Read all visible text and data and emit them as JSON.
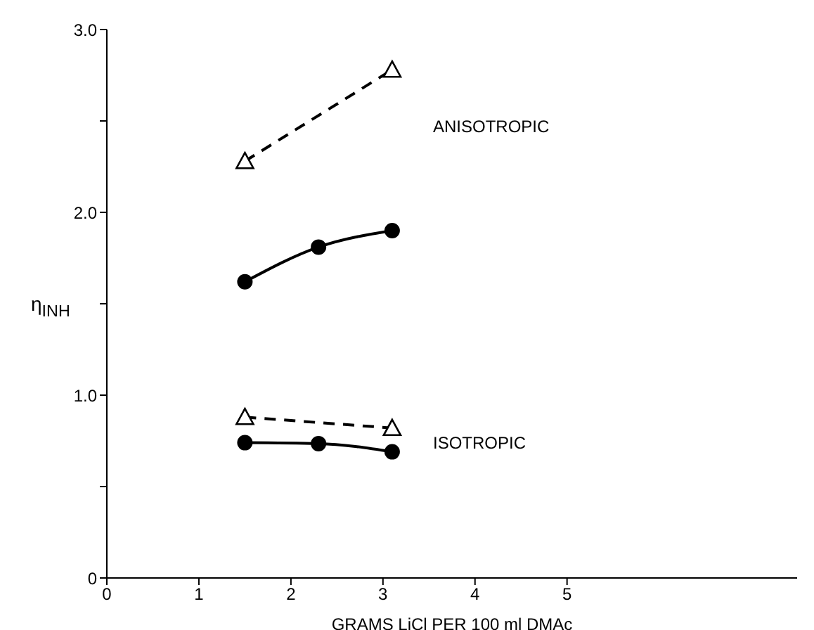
{
  "chart_data": {
    "type": "line",
    "xlabel": "GRAMS LiCl PER 100 ml DMAc",
    "ylabel": "η$_{INH}$",
    "xlim": [
      0,
      7.5
    ],
    "xticks": [
      0,
      1,
      2,
      3,
      4,
      5
    ],
    "ylim": [
      0,
      3.0
    ],
    "yticks": [
      {
        "value": 0,
        "label": "0"
      },
      {
        "value": 0.5,
        "label": null
      },
      {
        "value": 1.0,
        "label": "1.0"
      },
      {
        "value": 1.5,
        "label": null
      },
      {
        "value": 2.0,
        "label": "2.0"
      },
      {
        "value": 2.5,
        "label": null
      },
      {
        "value": 3.0,
        "label": "3.0"
      }
    ],
    "series": [
      {
        "color": "#000000",
        "marker": "triangle",
        "line_style": "dashed",
        "x": [
          1.5,
          3.1
        ],
        "values": [
          2.28,
          2.78
        ]
      },
      {
        "color": "#000000",
        "marker": "circle",
        "line_style": "solid",
        "x": [
          1.5,
          2.3,
          3.1
        ],
        "values": [
          1.62,
          1.81,
          1.9
        ]
      },
      {
        "color": "#000000",
        "marker": "triangle",
        "line_style": "dashed",
        "x": [
          1.5,
          3.1
        ],
        "values": [
          0.88,
          0.82
        ]
      },
      {
        "color": "#000000",
        "marker": "circle",
        "line_style": "solid",
        "x": [
          1.5,
          2.3,
          3.1
        ],
        "values": [
          0.74,
          0.735,
          0.69
        ]
      }
    ],
    "annotations": [
      "ANISOTROPIC",
      "ISOTROPIC"
    ]
  }
}
